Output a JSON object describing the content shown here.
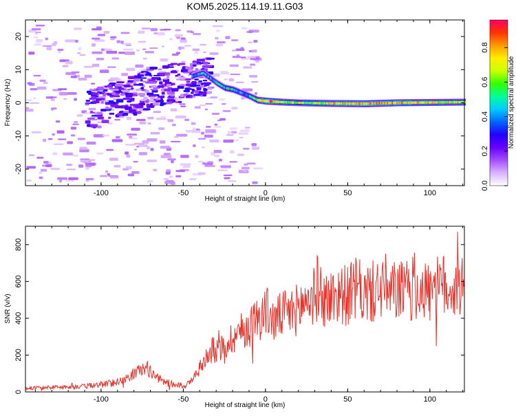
{
  "title": "KOM5.2025.114.19.11.G03",
  "colors": {
    "snr_line": "#e8322a",
    "axes": "#000000",
    "colorbar": [
      "#ffffff",
      "#d9b3ff",
      "#a64dff",
      "#6600ff",
      "#2200ff",
      "#0066ff",
      "#00ccff",
      "#00ff99",
      "#33ff00",
      "#ccff00",
      "#ffee00",
      "#ff9900",
      "#ff3300",
      "#ff0066"
    ]
  },
  "chart_data": [
    {
      "type": "heatmap",
      "xlabel": "Height of straight line (km)",
      "ylabel": "Frequency (Hz)",
      "xlim": [
        -146,
        121
      ],
      "ylim": [
        -25,
        25
      ],
      "xticks": [
        -100,
        -50,
        0,
        50,
        100
      ],
      "yticks": [
        -20,
        -10,
        0,
        10,
        20
      ],
      "colorbar": {
        "label": "Normalized spectral amplitude",
        "range": [
          0,
          0.96
        ],
        "ticks": [
          0.0,
          0.2,
          0.4,
          0.6,
          0.8
        ]
      },
      "ridge": {
        "x": [
          -70,
          -60,
          -50,
          -42,
          -38,
          -34,
          -30,
          -25,
          -20,
          -15,
          -10,
          -5,
          0,
          10,
          20,
          40,
          60,
          80,
          100,
          121
        ],
        "freq": [
          5,
          6,
          7,
          8.5,
          9,
          7.5,
          6,
          4.5,
          4,
          3,
          2,
          0.8,
          0.5,
          0.2,
          0.0,
          -0.2,
          -0.3,
          0.0,
          0.1,
          0.2
        ],
        "amplitude": [
          0.25,
          0.3,
          0.35,
          0.4,
          0.5,
          0.45,
          0.45,
          0.5,
          0.5,
          0.45,
          0.5,
          0.7,
          0.85,
          0.7,
          0.6,
          0.75,
          0.85,
          0.8,
          0.75,
          0.7
        ]
      }
    },
    {
      "type": "line",
      "xlabel": "Height of straight line (km)",
      "ylabel": "SNR (v/v)",
      "xlim": [
        -146,
        121
      ],
      "ylim": [
        0,
        900
      ],
      "xticks": [
        -100,
        -50,
        0,
        50,
        100
      ],
      "yticks": [
        0,
        200,
        400,
        600,
        800
      ],
      "series": [
        {
          "x": [
            -146,
            -130,
            -110,
            -95,
            -85,
            -80,
            -76,
            -72,
            -68,
            -62,
            -55,
            -48,
            -44,
            -40,
            -38,
            -35,
            -30,
            -25,
            -20,
            -15,
            -10,
            -5,
            -2,
            0,
            2,
            5,
            10,
            15,
            20,
            22,
            25,
            30,
            32,
            35,
            40,
            45,
            50,
            55,
            60,
            65,
            70,
            72,
            75,
            80,
            85,
            90,
            95,
            100,
            105,
            110,
            115,
            121
          ],
          "y": [
            20,
            25,
            30,
            45,
            70,
            100,
            120,
            130,
            90,
            55,
            40,
            35,
            70,
            130,
            150,
            220,
            230,
            240,
            300,
            330,
            350,
            400,
            420,
            440,
            430,
            380,
            420,
            430,
            450,
            470,
            500,
            520,
            580,
            500,
            510,
            540,
            520,
            560,
            530,
            540,
            560,
            600,
            520,
            560,
            540,
            560,
            570,
            540,
            560,
            580,
            560,
            570
          ]
        }
      ]
    }
  ]
}
